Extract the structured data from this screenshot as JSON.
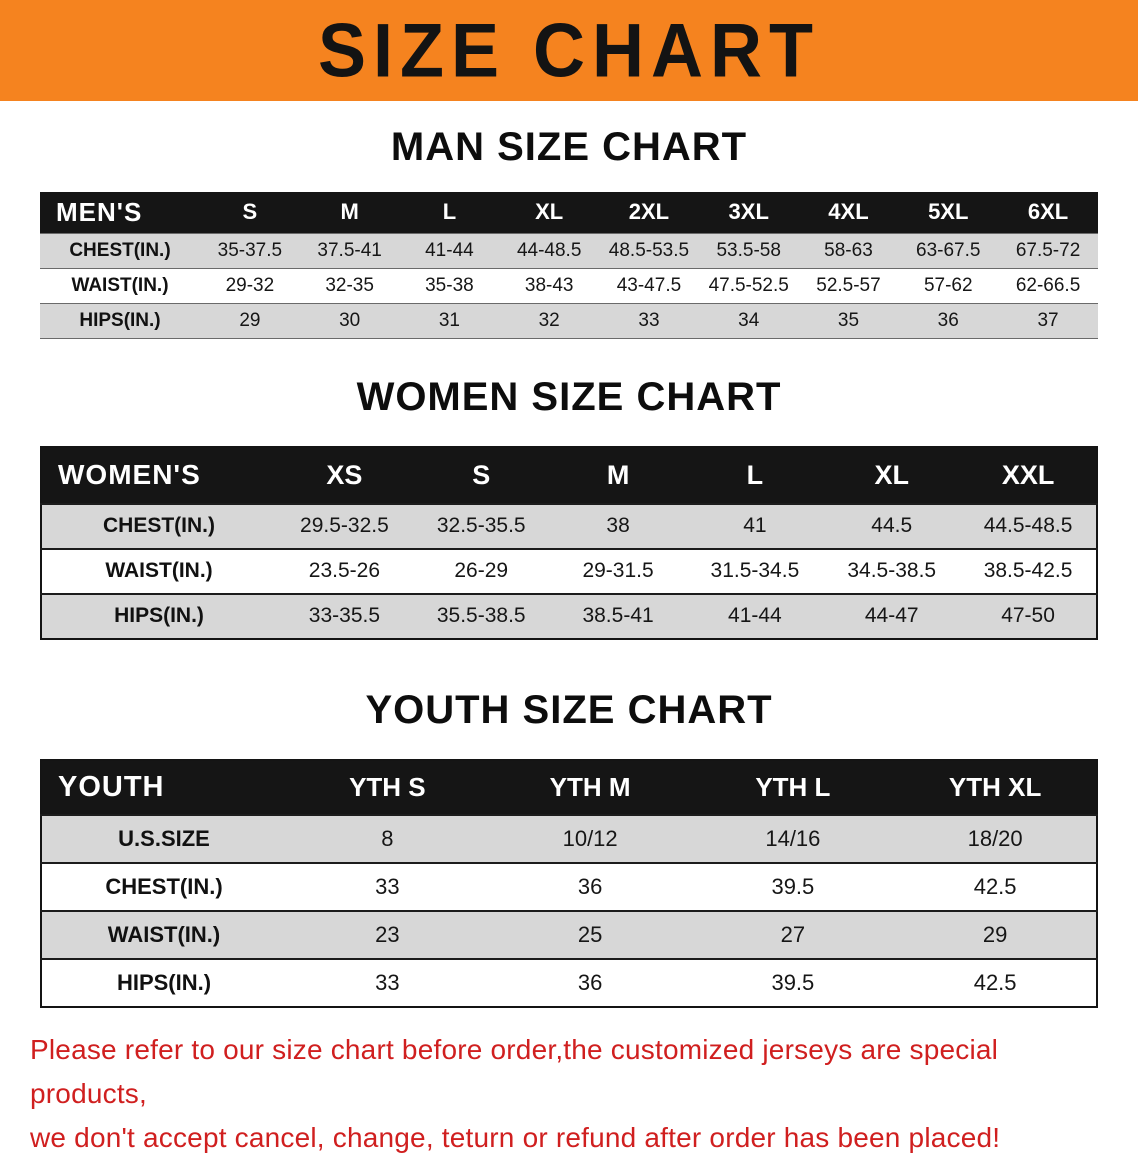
{
  "banner": {
    "title": "SIZE CHART"
  },
  "sections": [
    {
      "heading": "MAN SIZE CHART",
      "table": {
        "corner_label": "MEN'S",
        "columns": [
          "S",
          "M",
          "L",
          "XL",
          "2XL",
          "3XL",
          "4XL",
          "5XL",
          "6XL"
        ],
        "rows": [
          {
            "label": "CHEST(IN.)",
            "values": [
              "35-37.5",
              "37.5-41",
              "41-44",
              "44-48.5",
              "48.5-53.5",
              "53.5-58",
              "58-63",
              "63-67.5",
              "67.5-72"
            ]
          },
          {
            "label": "WAIST(IN.)",
            "values": [
              "29-32",
              "32-35",
              "35-38",
              "38-43",
              "43-47.5",
              "47.5-52.5",
              "52.5-57",
              "57-62",
              "62-66.5"
            ]
          },
          {
            "label": "HIPS(IN.)",
            "values": [
              "29",
              "30",
              "31",
              "32",
              "33",
              "34",
              "35",
              "36",
              "37"
            ]
          }
        ]
      }
    },
    {
      "heading": "WOMEN SIZE CHART",
      "table": {
        "corner_label": "WOMEN'S",
        "columns": [
          "XS",
          "S",
          "M",
          "L",
          "XL",
          "XXL"
        ],
        "rows": [
          {
            "label": "CHEST(IN.)",
            "values": [
              "29.5-32.5",
              "32.5-35.5",
              "38",
              "41",
              "44.5",
              "44.5-48.5"
            ]
          },
          {
            "label": "WAIST(IN.)",
            "values": [
              "23.5-26",
              "26-29",
              "29-31.5",
              "31.5-34.5",
              "34.5-38.5",
              "38.5-42.5"
            ]
          },
          {
            "label": "HIPS(IN.)",
            "values": [
              "33-35.5",
              "35.5-38.5",
              "38.5-41",
              "41-44",
              "44-47",
              "47-50"
            ]
          }
        ]
      }
    },
    {
      "heading": "YOUTH SIZE CHART",
      "table": {
        "corner_label": "YOUTH",
        "columns": [
          "YTH S",
          "YTH M",
          "YTH L",
          "YTH XL"
        ],
        "rows": [
          {
            "label": "U.S.SIZE",
            "values": [
              "8",
              "10/12",
              "14/16",
              "18/20"
            ]
          },
          {
            "label": "CHEST(IN.)",
            "values": [
              "33",
              "36",
              "39.5",
              "42.5"
            ]
          },
          {
            "label": "WAIST(IN.)",
            "values": [
              "23",
              "25",
              "27",
              "29"
            ]
          },
          {
            "label": "HIPS(IN.)",
            "values": [
              "33",
              "36",
              "39.5",
              "42.5"
            ]
          }
        ]
      }
    }
  ],
  "footer_note": {
    "line1": "Please refer to our size chart before order,the customized jerseys are special products,",
    "line2": "we don't accept cancel, change, teturn or refund after order has been placed!"
  },
  "colors": {
    "banner_orange": "#f5831f",
    "header_black": "#151515",
    "row_shade_gray": "#d7d7d7",
    "note_red": "#d01f1f"
  }
}
